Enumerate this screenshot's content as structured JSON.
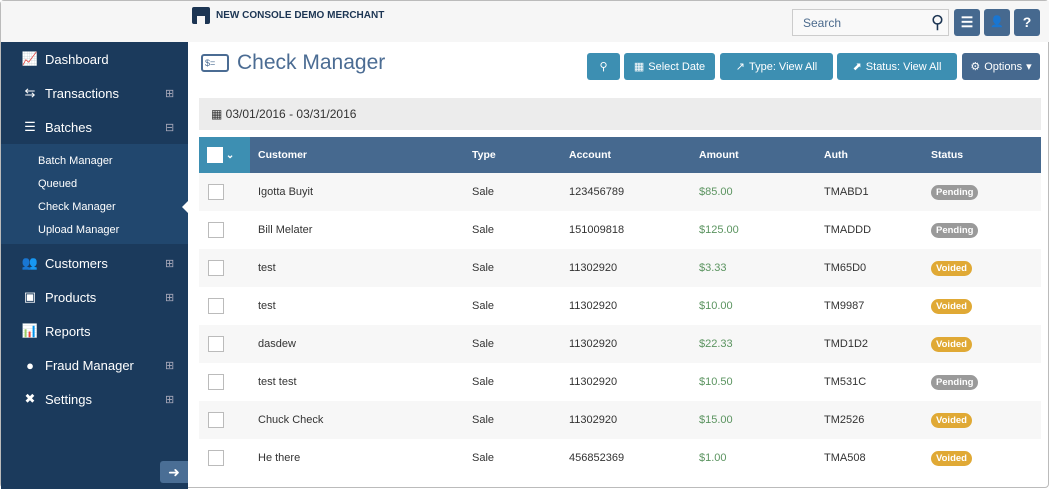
{
  "header": {
    "merchant": "NEW CONSOLE DEMO MERCHANT",
    "search_placeholder": "Search",
    "menu": "☰",
    "user": "👤",
    "help": "?"
  },
  "sidebar": {
    "items": [
      {
        "label": "Dashboard",
        "icon": "chart-icon",
        "glyph": "📈",
        "expand": ""
      },
      {
        "label": "Transactions",
        "icon": "transfer-icon",
        "glyph": "⇆",
        "expand": "⊞"
      },
      {
        "label": "Batches",
        "icon": "batches-icon",
        "glyph": "☰",
        "expand": "⊟"
      },
      {
        "label": "Customers",
        "icon": "customers-icon",
        "glyph": "👥",
        "expand": "⊞"
      },
      {
        "label": "Products",
        "icon": "products-icon",
        "glyph": "▣",
        "expand": "⊞"
      },
      {
        "label": "Reports",
        "icon": "reports-icon",
        "glyph": "📊",
        "expand": ""
      },
      {
        "label": "Fraud Manager",
        "icon": "fraud-icon",
        "glyph": "●",
        "expand": "⊞"
      },
      {
        "label": "Settings",
        "icon": "settings-icon",
        "glyph": "✖",
        "expand": "⊞"
      }
    ],
    "subitems": [
      "Batch Manager",
      "Queued",
      "Check Manager",
      "Upload Manager"
    ],
    "active_sub": "Check Manager",
    "collapse": "➜"
  },
  "page": {
    "title": "Check Manager",
    "date_range": "03/01/2016 - 03/31/2016"
  },
  "toolbar": {
    "select_date": "Select Date",
    "type": "Type: View All",
    "status": "Status: View All",
    "options": "Options"
  },
  "table": {
    "columns": [
      "Customer",
      "Type",
      "Account",
      "Amount",
      "Auth",
      "Status"
    ],
    "rows": [
      [
        "Igotta Buyit",
        "Sale",
        "123456789",
        "$85.00",
        "TMABD1",
        "Pending"
      ],
      [
        "Bill Melater",
        "Sale",
        "151009818",
        "$125.00",
        "TMADDD",
        "Pending"
      ],
      [
        "test",
        "Sale",
        "11302920",
        "$3.33",
        "TM65D0",
        "Voided"
      ],
      [
        "test",
        "Sale",
        "11302920",
        "$10.00",
        "TM9987",
        "Voided"
      ],
      [
        "dasdew",
        "Sale",
        "11302920",
        "$22.33",
        "TMD1D2",
        "Voided"
      ],
      [
        "test test",
        "Sale",
        "11302920",
        "$10.50",
        "TM531C",
        "Pending"
      ],
      [
        "Chuck Check",
        "Sale",
        "11302920",
        "$15.00",
        "TM2526",
        "Voided"
      ],
      [
        "He there",
        "Sale",
        "456852369",
        "$1.00",
        "TMA508",
        "Voided"
      ]
    ]
  },
  "colors": {
    "Pending": "#9a9a9a",
    "Voided": "#e0a935",
    "sidebar": "#1b3a5c",
    "accent": "#3d8fb2"
  }
}
